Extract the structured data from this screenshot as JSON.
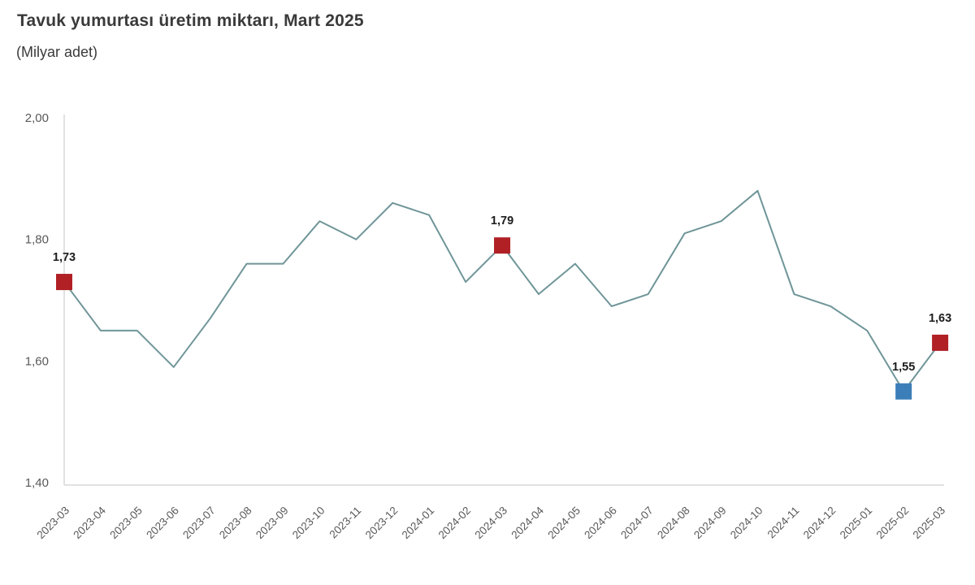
{
  "header": {
    "title": "Tavuk yumurtası üretim miktarı, Mart 2025",
    "subtitle": "(Milyar adet)"
  },
  "chart_data": {
    "type": "line",
    "title": "Tavuk yumurtası üretim miktarı, Mart 2025",
    "unit_label": "(Milyar adet)",
    "categories": [
      "2023-03",
      "2023-04",
      "2023-05",
      "2023-06",
      "2023-07",
      "2023-08",
      "2023-09",
      "2023-10",
      "2023-11",
      "2023-12",
      "2024-01",
      "2024-02",
      "2024-03",
      "2024-04",
      "2024-05",
      "2024-06",
      "2024-07",
      "2024-08",
      "2024-09",
      "2024-10",
      "2024-11",
      "2024-12",
      "2025-01",
      "2025-02",
      "2025-03"
    ],
    "values": [
      1.73,
      1.65,
      1.65,
      1.59,
      1.67,
      1.76,
      1.76,
      1.83,
      1.8,
      1.86,
      1.84,
      1.73,
      1.79,
      1.71,
      1.76,
      1.69,
      1.71,
      1.81,
      1.83,
      1.88,
      1.71,
      1.69,
      1.65,
      1.55,
      1.63
    ],
    "ylim": [
      1.4,
      2.0
    ],
    "y_ticks": [
      {
        "label": "2,00",
        "value": 2.0
      },
      {
        "label": "1,80",
        "value": 1.8
      },
      {
        "label": "1,60",
        "value": 1.6
      },
      {
        "label": "1,40",
        "value": 1.4
      }
    ],
    "grid": "off",
    "legend": "none",
    "highlights": [
      {
        "category": "2023-03",
        "value": 1.73,
        "label": "1,73",
        "color": "#b02025"
      },
      {
        "category": "2024-03",
        "value": 1.79,
        "label": "1,79",
        "color": "#b02025"
      },
      {
        "category": "2025-02",
        "value": 1.55,
        "label": "1,55",
        "color": "#3c7eb8"
      },
      {
        "category": "2025-03",
        "value": 1.63,
        "label": "1,63",
        "color": "#b02025"
      }
    ],
    "colors": {
      "line": "#6f9598",
      "marker_red": "#b02025",
      "marker_blue": "#3c7eb8",
      "axis": "#d9d9d9",
      "tick_text": "#595959",
      "value_label_text": "#1c1c1c",
      "title_text": "#3a3a3a"
    }
  }
}
